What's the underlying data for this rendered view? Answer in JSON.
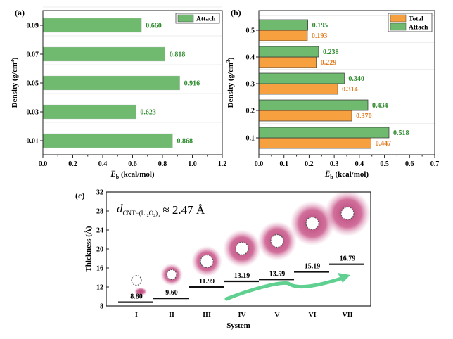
{
  "colors": {
    "attach": "#6fba6f",
    "attach_text": "#2e8b2e",
    "total": "#f7a040",
    "total_text": "#e07b20",
    "arrow": "#5fd08f",
    "blob": "#c2407a"
  },
  "chart_data": [
    {
      "panel": "(a)",
      "type": "bar",
      "orientation": "horizontal",
      "categories": [
        "0.01",
        "0.03",
        "0.05",
        "0.07",
        "0.09"
      ],
      "series": [
        {
          "name": "Attach",
          "values": [
            0.868,
            0.623,
            0.916,
            0.818,
            0.66
          ],
          "labels": [
            "0.868",
            "0.623",
            "0.916",
            "0.818",
            "0.660"
          ]
        }
      ],
      "xlabel": "E̅b (kcal/mol)",
      "xlabel_main": "E̅",
      "xlabel_sub": "b",
      "xlabel_unit": " (kcal/mol)",
      "ylabel": "Density (g/cm3)",
      "ylabel_main": "Density (g/cm",
      "ylabel_sup": "3",
      "ylabel_end": ")",
      "xlim": [
        0,
        1.2
      ],
      "xticks": [
        "0.0",
        "0.2",
        "0.4",
        "0.6",
        "0.8",
        "1.0",
        "1.2"
      ],
      "legend": "top-right"
    },
    {
      "panel": "(b)",
      "type": "bar",
      "orientation": "horizontal",
      "categories": [
        "0.1",
        "0.2",
        "0.3",
        "0.4",
        "0.5"
      ],
      "series": [
        {
          "name": "Total",
          "values": [
            0.447,
            0.37,
            0.314,
            0.229,
            0.193
          ],
          "labels": [
            "0.447",
            "0.370",
            "0.314",
            "0.229",
            "0.193"
          ]
        },
        {
          "name": "Attach",
          "values": [
            0.518,
            0.434,
            0.34,
            0.238,
            0.195
          ],
          "labels": [
            "0.518",
            "0.434",
            "0.340",
            "0.238",
            "0.195"
          ]
        }
      ],
      "xlabel": "E̅b (kcal/mol)",
      "xlabel_main": "E̅",
      "xlabel_sub": "b",
      "xlabel_unit": " (kcal/mol)",
      "ylabel": "Density (g/cm3)",
      "ylabel_main": "Density (g/cm",
      "ylabel_sup": "3",
      "ylabel_end": ")",
      "xlim": [
        0,
        0.7
      ],
      "xticks": [
        "0.0",
        "0.1",
        "0.2",
        "0.3",
        "0.4",
        "0.5",
        "0.6",
        "0.7"
      ],
      "legend": "top-right"
    },
    {
      "panel": "(c)",
      "type": "step",
      "categories": [
        "I",
        "II",
        "III",
        "IV",
        "V",
        "VI",
        "VII"
      ],
      "values": [
        8.8,
        9.6,
        11.99,
        13.19,
        13.59,
        15.19,
        16.79
      ],
      "labels": [
        "8.80",
        "9.60",
        "11.99",
        "13.19",
        "13.59",
        "15.19",
        "16.79"
      ],
      "blob_centers": [
        13.4,
        14.6,
        17.4,
        20.1,
        21.7,
        25.4,
        27.5
      ],
      "xlabel": "System",
      "ylabel": "Thickness (Å)",
      "ylim": [
        8,
        32
      ],
      "yticks": [
        "8",
        "12",
        "16",
        "20",
        "24",
        "28",
        "32"
      ],
      "annotation": {
        "d": "d",
        "sub": "CNT−(Li",
        "sub2": "2",
        "sub3": "O",
        "sub4": "2",
        "sub5": ")",
        "subn": "n",
        "rest": " ≈ 2.47 Å"
      }
    }
  ]
}
